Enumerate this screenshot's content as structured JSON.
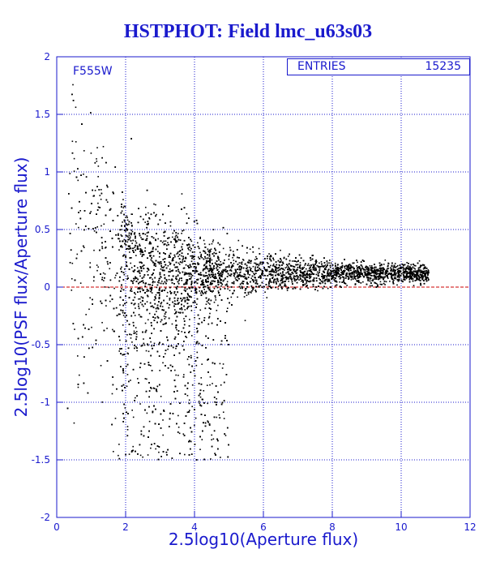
{
  "title": "HSTPHOT: Field lmc_u63s03",
  "chart_data": {
    "type": "scatter",
    "title": "HSTPHOT: Field lmc_u63s03",
    "xlabel": "2.5log10(Aperture flux)",
    "ylabel": "2.5log10(PSF flux/Aperture flux)",
    "xlim": [
      0,
      12
    ],
    "ylim": [
      -2,
      2
    ],
    "x_ticks": [
      "0",
      "2",
      "4",
      "6",
      "8",
      "10",
      "12"
    ],
    "y_ticks": [
      "-2",
      "-1.5",
      "-1",
      "-0.5",
      "0",
      "0.5",
      "1",
      "1.5",
      "2"
    ],
    "grid": true,
    "reference_line": {
      "y": 0,
      "style": "dashed",
      "color": "#cc0000"
    },
    "annotation": "F555W",
    "stats": {
      "label": "ENTRIES",
      "value": "15235"
    },
    "entries": 15235,
    "colors": {
      "axis": "#1a1acd",
      "grid": "#1a1acd",
      "points": "#000000",
      "refline": "#cc0000"
    },
    "points_note": "dense cloud: spread ±1 near x≈1–4, converging to y≈0.1 at x≈10.5"
  }
}
